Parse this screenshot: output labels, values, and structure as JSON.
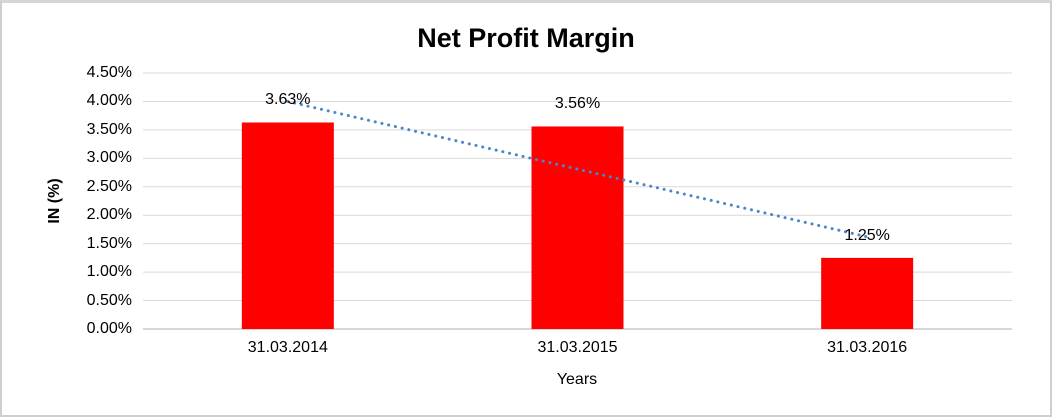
{
  "chart_data": {
    "type": "bar",
    "title": "Net Profit Margin",
    "xlabel": "Years",
    "ylabel": "IN (%)",
    "categories": [
      "31.03.2014",
      "31.03.2015",
      "31.03.2016"
    ],
    "values": [
      3.63,
      3.56,
      1.25
    ],
    "data_labels": [
      "3.63%",
      "3.56%",
      "1.25%"
    ],
    "ylim": [
      0,
      4.5
    ],
    "ytick_step": 0.5,
    "ytick_labels": [
      "0.00%",
      "0.50%",
      "1.00%",
      "1.50%",
      "2.00%",
      "2.50%",
      "3.00%",
      "3.50%",
      "4.00%",
      "4.50%"
    ],
    "grid": true,
    "legend": false,
    "bar_color": "#FF0000",
    "gridline_color": "#D9D9D9",
    "axis_line_color": "#BFBFBF",
    "text_color": "#000000",
    "border_color": "#CFCFCF",
    "background": "#FFFFFF",
    "trendline": {
      "type": "linear",
      "style": "dotted",
      "color": "#4A86C8",
      "start_value": 4.0,
      "end_value": 1.62
    }
  }
}
